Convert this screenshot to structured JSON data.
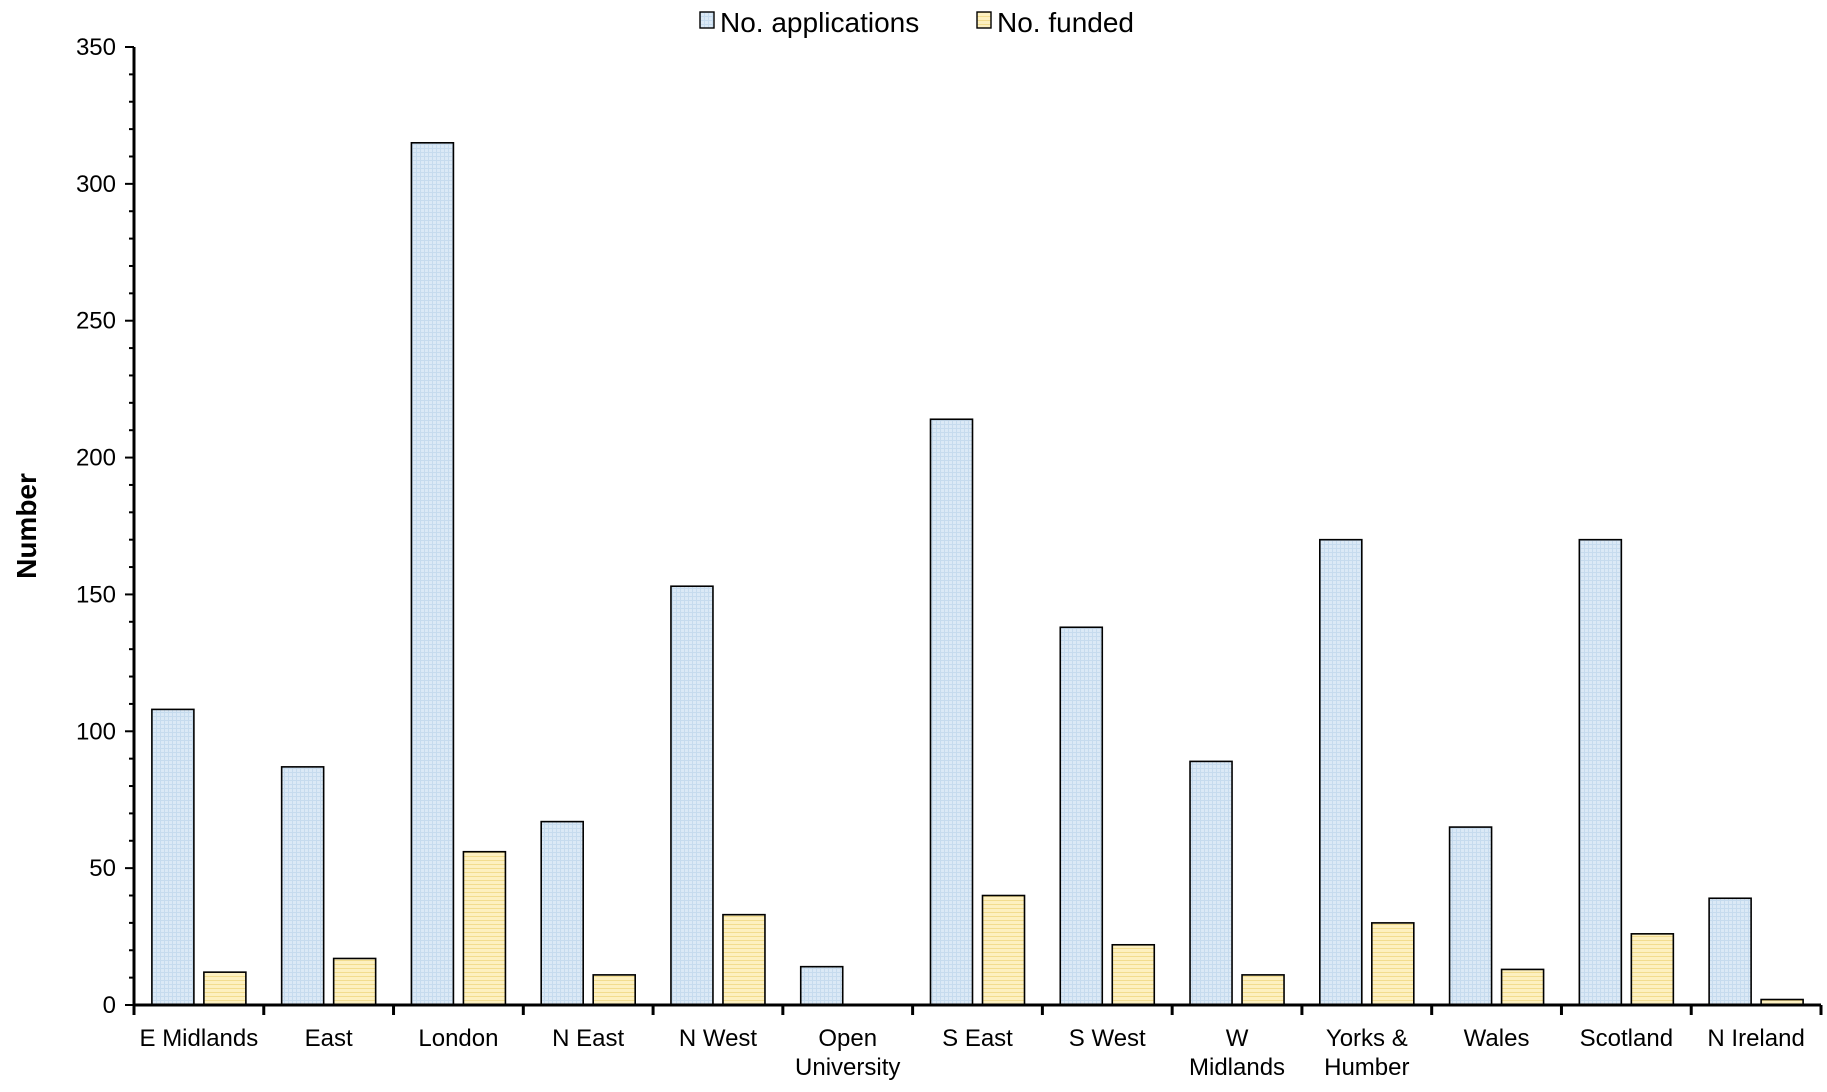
{
  "chart_data": {
    "type": "bar",
    "categories": [
      [
        "E Midlands"
      ],
      [
        "East"
      ],
      [
        "London"
      ],
      [
        "N East"
      ],
      [
        "N West"
      ],
      [
        "Open",
        "University"
      ],
      [
        "S East"
      ],
      [
        "S West"
      ],
      [
        "W",
        "Midlands"
      ],
      [
        "Yorks &",
        "Humber"
      ],
      [
        "Wales"
      ],
      [
        "Scotland"
      ],
      [
        "N Ireland"
      ]
    ],
    "series": [
      {
        "name": "No. applications",
        "values": [
          108,
          87,
          315,
          67,
          153,
          14,
          214,
          138,
          89,
          170,
          65,
          170,
          39
        ],
        "color": "#dbe9f6"
      },
      {
        "name": "No. funded",
        "values": [
          12,
          17,
          56,
          11,
          33,
          0,
          40,
          22,
          11,
          30,
          13,
          26,
          2
        ],
        "color": "#fdf0c0"
      }
    ],
    "ylabel": "Number",
    "xlabel": "",
    "ylim": [
      0,
      350
    ],
    "yticks": [
      0,
      50,
      100,
      150,
      200,
      250,
      300,
      350
    ],
    "legend_position": "top-center",
    "grid": false
  }
}
